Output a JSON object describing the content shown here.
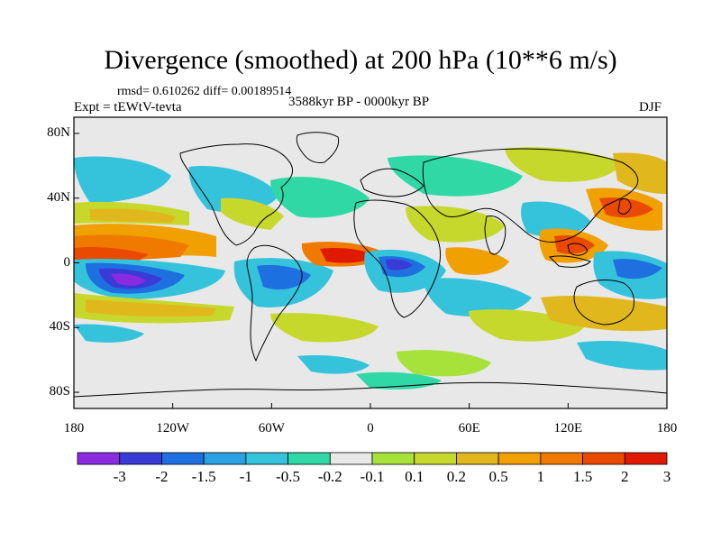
{
  "title": "Divergence (smoothed) at 200 hPa (10**6 m/s)",
  "stats": "rmsd= 0.610262  diff= 0.00189514",
  "experiment": "Expt = tEWtV-tevta",
  "period": "3588kyr BP - 0000kyr BP",
  "season": "DJF",
  "lat_ticks": [
    {
      "label": "80N",
      "lat": 80
    },
    {
      "label": "40N",
      "lat": 40
    },
    {
      "label": "0",
      "lat": 0
    },
    {
      "label": "40S",
      "lat": -40
    },
    {
      "label": "80S",
      "lat": -80
    }
  ],
  "lon_ticks": [
    {
      "label": "180",
      "lon": -180
    },
    {
      "label": "120W",
      "lon": -120
    },
    {
      "label": "60W",
      "lon": -60
    },
    {
      "label": "0",
      "lon": 0
    },
    {
      "label": "60E",
      "lon": 60
    },
    {
      "label": "120E",
      "lon": 120
    },
    {
      "label": "180",
      "lon": 180
    }
  ],
  "colorbar": {
    "colors": [
      "#8a2be2",
      "#3a3ad6",
      "#1e6fe0",
      "#2aa1e2",
      "#35c3dc",
      "#30d8a6",
      "#e8e8e8",
      "#a6e23a",
      "#c7d82c",
      "#e0b81e",
      "#f0a000",
      "#f07a00",
      "#ea4a00",
      "#e01a00"
    ],
    "labels": [
      "-3",
      "-2",
      "-1.5",
      "-1",
      "-0.5",
      "-0.2",
      "-0.1",
      "0.1",
      "0.2",
      "0.5",
      "1",
      "1.5",
      "2",
      "3"
    ]
  }
}
